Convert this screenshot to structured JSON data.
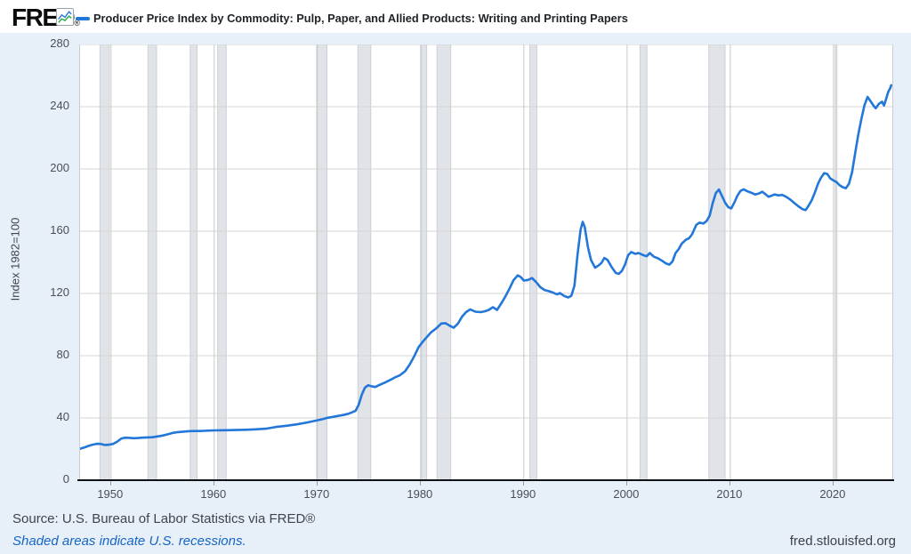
{
  "header": {
    "logo_text": "FRED",
    "registered_mark": "®",
    "legend_label": "Producer Price Index by Commodity: Pulp, Paper, and Allied Products: Writing and Printing Papers"
  },
  "footer": {
    "source": "Source: U.S. Bureau of Labor Statistics via FRED®",
    "recession_note": "Shaded areas indicate U.S. recessions.",
    "site": "fred.stlouisfed.org"
  },
  "colors": {
    "line": "#2277d8",
    "recession_band": "#e0e3e7",
    "recession_band_edge": "#cdd1d6",
    "y_gridline": "#d5d5d5",
    "x_gridline": "#c9c9c9",
    "page_background": "#e7f0f8",
    "logo_icon_blue": "#2f7ed8",
    "logo_icon_green": "#2aa84a"
  },
  "chart_data": {
    "type": "line",
    "title": "Producer Price Index by Commodity: Pulp, Paper, and Allied Products: Writing and Printing Papers",
    "xlabel": "",
    "ylabel": "Index 1982=100",
    "ylim": [
      0,
      280
    ],
    "yticks": [
      0,
      40,
      80,
      120,
      160,
      200,
      240,
      280
    ],
    "xlim": [
      1947,
      2025.7
    ],
    "xticks": [
      1950,
      1960,
      1970,
      1980,
      1990,
      2000,
      2010,
      2020
    ],
    "grid": true,
    "legend_position": "top",
    "recessions": [
      [
        1948.92,
        1949.83
      ],
      [
        1953.58,
        1954.42
      ],
      [
        1957.67,
        1958.33
      ],
      [
        1960.33,
        1961.17
      ],
      [
        1969.92,
        1970.92
      ],
      [
        1973.92,
        1975.17
      ],
      [
        1980.08,
        1980.58
      ],
      [
        1981.58,
        1982.92
      ],
      [
        1990.58,
        1991.25
      ],
      [
        2001.25,
        2001.92
      ],
      [
        2007.92,
        2009.5
      ],
      [
        2020.17,
        2020.33
      ]
    ],
    "series": [
      {
        "name": "Producer Price Index by Commodity: Pulp, Paper, and Allied Products: Writing and Printing Papers",
        "points": [
          [
            1947.0,
            20.2
          ],
          [
            1947.4,
            21.0
          ],
          [
            1947.8,
            22.0
          ],
          [
            1948.2,
            22.8
          ],
          [
            1948.6,
            23.4
          ],
          [
            1949.0,
            23.3
          ],
          [
            1949.4,
            22.6
          ],
          [
            1949.8,
            22.8
          ],
          [
            1950.2,
            23.3
          ],
          [
            1950.6,
            24.8
          ],
          [
            1951.0,
            26.8
          ],
          [
            1951.4,
            27.3
          ],
          [
            1951.8,
            27.2
          ],
          [
            1952.2,
            27.0
          ],
          [
            1952.6,
            27.1
          ],
          [
            1953.0,
            27.3
          ],
          [
            1953.5,
            27.5
          ],
          [
            1954.0,
            27.6
          ],
          [
            1954.5,
            28.1
          ],
          [
            1955.0,
            28.7
          ],
          [
            1955.5,
            29.5
          ],
          [
            1956.0,
            30.4
          ],
          [
            1956.5,
            30.9
          ],
          [
            1957.0,
            31.2
          ],
          [
            1957.5,
            31.5
          ],
          [
            1958.0,
            31.6
          ],
          [
            1958.5,
            31.6
          ],
          [
            1959.0,
            31.7
          ],
          [
            1959.5,
            31.9
          ],
          [
            1960.0,
            32.0
          ],
          [
            1961.0,
            32.1
          ],
          [
            1962.0,
            32.2
          ],
          [
            1963.0,
            32.4
          ],
          [
            1964.0,
            32.7
          ],
          [
            1965.0,
            33.1
          ],
          [
            1966.0,
            34.2
          ],
          [
            1967.0,
            35.0
          ],
          [
            1968.0,
            35.9
          ],
          [
            1969.0,
            37.1
          ],
          [
            1969.5,
            37.8
          ],
          [
            1970.0,
            38.5
          ],
          [
            1970.5,
            39.2
          ],
          [
            1971.0,
            40.1
          ],
          [
            1971.5,
            40.7
          ],
          [
            1972.0,
            41.3
          ],
          [
            1972.5,
            41.9
          ],
          [
            1973.0,
            42.7
          ],
          [
            1973.4,
            43.8
          ],
          [
            1973.7,
            44.6
          ],
          [
            1974.0,
            48.5
          ],
          [
            1974.3,
            55.0
          ],
          [
            1974.6,
            59.5
          ],
          [
            1974.9,
            61.0
          ],
          [
            1975.2,
            60.4
          ],
          [
            1975.6,
            59.9
          ],
          [
            1976.0,
            61.2
          ],
          [
            1976.5,
            62.6
          ],
          [
            1977.0,
            64.2
          ],
          [
            1977.5,
            66.0
          ],
          [
            1978.0,
            67.5
          ],
          [
            1978.5,
            70.0
          ],
          [
            1979.0,
            75.0
          ],
          [
            1979.4,
            80.0
          ],
          [
            1979.8,
            85.5
          ],
          [
            1980.2,
            89.0
          ],
          [
            1980.6,
            92.0
          ],
          [
            1981.0,
            95.0
          ],
          [
            1981.5,
            97.5
          ],
          [
            1982.0,
            100.7
          ],
          [
            1982.4,
            100.9
          ],
          [
            1982.8,
            99.3
          ],
          [
            1983.2,
            98.0
          ],
          [
            1983.6,
            100.5
          ],
          [
            1984.0,
            105.0
          ],
          [
            1984.4,
            108.0
          ],
          [
            1984.8,
            109.8
          ],
          [
            1985.3,
            108.3
          ],
          [
            1985.8,
            108.0
          ],
          [
            1986.2,
            108.5
          ],
          [
            1986.6,
            109.4
          ],
          [
            1987.0,
            111.2
          ],
          [
            1987.4,
            109.4
          ],
          [
            1987.8,
            113.5
          ],
          [
            1988.2,
            118.0
          ],
          [
            1988.6,
            123.0
          ],
          [
            1989.0,
            128.5
          ],
          [
            1989.4,
            131.6
          ],
          [
            1989.7,
            130.5
          ],
          [
            1990.0,
            128.3
          ],
          [
            1990.4,
            128.7
          ],
          [
            1990.8,
            129.9
          ],
          [
            1991.2,
            127.2
          ],
          [
            1991.6,
            124.0
          ],
          [
            1992.0,
            122.2
          ],
          [
            1992.4,
            121.5
          ],
          [
            1992.8,
            120.6
          ],
          [
            1993.2,
            119.4
          ],
          [
            1993.5,
            120.2
          ],
          [
            1993.9,
            118.4
          ],
          [
            1994.3,
            117.4
          ],
          [
            1994.6,
            118.5
          ],
          [
            1994.9,
            125.0
          ],
          [
            1995.2,
            145.0
          ],
          [
            1995.5,
            161.0
          ],
          [
            1995.7,
            166.0
          ],
          [
            1995.9,
            162.5
          ],
          [
            1996.2,
            150.0
          ],
          [
            1996.5,
            141.5
          ],
          [
            1996.9,
            136.6
          ],
          [
            1997.2,
            137.8
          ],
          [
            1997.5,
            139.5
          ],
          [
            1997.8,
            142.8
          ],
          [
            1998.1,
            141.6
          ],
          [
            1998.5,
            137.0
          ],
          [
            1998.9,
            133.2
          ],
          [
            1999.2,
            132.6
          ],
          [
            1999.5,
            134.5
          ],
          [
            1999.8,
            138.5
          ],
          [
            2000.1,
            144.5
          ],
          [
            2000.4,
            146.6
          ],
          [
            2000.8,
            145.4
          ],
          [
            2001.1,
            146.0
          ],
          [
            2001.5,
            144.8
          ],
          [
            2001.9,
            143.9
          ],
          [
            2002.2,
            146.0
          ],
          [
            2002.6,
            143.6
          ],
          [
            2003.0,
            142.6
          ],
          [
            2003.4,
            141.0
          ],
          [
            2003.8,
            139.2
          ],
          [
            2004.1,
            138.5
          ],
          [
            2004.4,
            140.5
          ],
          [
            2004.7,
            146.0
          ],
          [
            2005.0,
            148.5
          ],
          [
            2005.3,
            152.0
          ],
          [
            2005.7,
            154.5
          ],
          [
            2006.0,
            155.5
          ],
          [
            2006.3,
            158.0
          ],
          [
            2006.7,
            164.0
          ],
          [
            2007.0,
            165.5
          ],
          [
            2007.4,
            165.0
          ],
          [
            2007.7,
            166.5
          ],
          [
            2008.0,
            170.0
          ],
          [
            2008.3,
            178.0
          ],
          [
            2008.6,
            184.5
          ],
          [
            2008.9,
            186.8
          ],
          [
            2009.2,
            182.5
          ],
          [
            2009.5,
            178.3
          ],
          [
            2009.8,
            175.5
          ],
          [
            2010.1,
            174.6
          ],
          [
            2010.4,
            178.5
          ],
          [
            2010.7,
            183.0
          ],
          [
            2011.0,
            186.0
          ],
          [
            2011.3,
            186.9
          ],
          [
            2011.6,
            185.8
          ],
          [
            2012.0,
            184.8
          ],
          [
            2012.4,
            183.6
          ],
          [
            2012.8,
            184.3
          ],
          [
            2013.1,
            185.4
          ],
          [
            2013.4,
            183.8
          ],
          [
            2013.7,
            182.2
          ],
          [
            2014.0,
            182.8
          ],
          [
            2014.3,
            183.6
          ],
          [
            2014.7,
            183.0
          ],
          [
            2015.0,
            183.4
          ],
          [
            2015.4,
            182.2
          ],
          [
            2015.8,
            180.4
          ],
          [
            2016.2,
            178.2
          ],
          [
            2016.6,
            176.0
          ],
          [
            2017.0,
            174.2
          ],
          [
            2017.3,
            173.6
          ],
          [
            2017.6,
            176.5
          ],
          [
            2017.9,
            180.0
          ],
          [
            2018.2,
            185.0
          ],
          [
            2018.5,
            190.5
          ],
          [
            2018.8,
            194.5
          ],
          [
            2019.1,
            197.3
          ],
          [
            2019.4,
            196.8
          ],
          [
            2019.7,
            193.8
          ],
          [
            2020.0,
            192.6
          ],
          [
            2020.3,
            191.5
          ],
          [
            2020.6,
            189.5
          ],
          [
            2020.9,
            188.3
          ],
          [
            2021.2,
            187.6
          ],
          [
            2021.5,
            190.5
          ],
          [
            2021.8,
            198.0
          ],
          [
            2022.1,
            210.0
          ],
          [
            2022.4,
            222.0
          ],
          [
            2022.7,
            232.0
          ],
          [
            2023.0,
            241.0
          ],
          [
            2023.3,
            246.3
          ],
          [
            2023.6,
            243.5
          ],
          [
            2023.9,
            240.5
          ],
          [
            2024.1,
            239.0
          ],
          [
            2024.4,
            241.8
          ],
          [
            2024.7,
            243.2
          ],
          [
            2024.9,
            240.8
          ],
          [
            2025.1,
            245.0
          ],
          [
            2025.3,
            249.5
          ],
          [
            2025.5,
            252.0
          ],
          [
            2025.6,
            253.8
          ]
        ]
      }
    ]
  }
}
